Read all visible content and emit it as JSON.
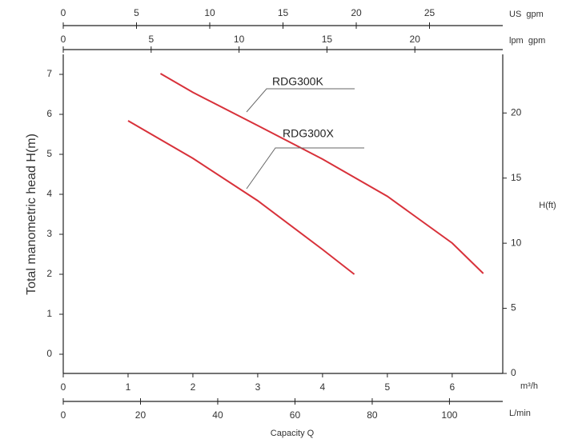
{
  "chart_data": {
    "type": "line",
    "ylabel": "Total manometric head H(m)",
    "y2label": "H(ft)",
    "xunit": "m³/h",
    "xlabel": "Capacity Q",
    "xlim": [
      0,
      6.78
    ],
    "xticks": [
      0,
      1,
      2,
      3,
      4,
      5,
      6
    ],
    "ylim": [
      -0.48,
      7.5
    ],
    "yticks": [
      0,
      1,
      2,
      3,
      4,
      5,
      6,
      7
    ],
    "y2lim": [
      0,
      24.5
    ],
    "y2ticks": [
      0,
      5,
      10,
      15,
      20
    ],
    "top_axes": [
      {
        "label": "US  gpm",
        "lim": [
          0,
          30
        ],
        "ticks": [
          0,
          5,
          10,
          15,
          20,
          25
        ]
      },
      {
        "label": "lpm  gpm",
        "lim": [
          0,
          25
        ],
        "ticks": [
          0,
          5,
          10,
          15,
          20
        ]
      }
    ],
    "bottom_axis": {
      "label": "L/min",
      "lim": [
        0,
        113.8
      ],
      "ticks": [
        0,
        20,
        40,
        60,
        80,
        100
      ]
    },
    "series": [
      {
        "name": "RDG300K",
        "color": "#d8313a",
        "x": [
          1.5,
          2,
          3,
          4,
          5,
          6,
          6.48
        ],
        "values": [
          7.02,
          6.55,
          5.72,
          4.88,
          3.95,
          2.78,
          2.02
        ]
      },
      {
        "name": "RDG300X",
        "color": "#d8313a",
        "x": [
          1,
          2,
          3,
          4,
          4.49
        ],
        "values": [
          5.84,
          4.9,
          3.84,
          2.62,
          2.0
        ]
      }
    ]
  }
}
